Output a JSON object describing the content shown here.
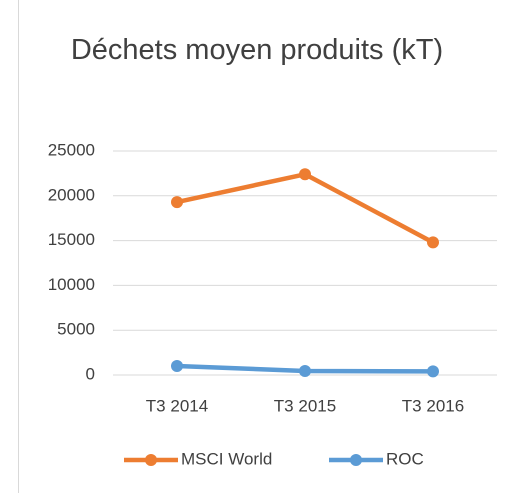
{
  "chart_data": {
    "type": "line",
    "title": "Déchets moyen produits (kT)",
    "categories": [
      "T3 2014",
      "T3 2015",
      "T3 2016"
    ],
    "series": [
      {
        "name": "MSCI World",
        "color": "#ed7d31",
        "values": [
          19300,
          22400,
          14800
        ]
      },
      {
        "name": "ROC",
        "color": "#5b9bd5",
        "values": [
          1000,
          450,
          400
        ]
      }
    ],
    "ylim": [
      0,
      25000
    ],
    "yticks": [
      0,
      5000,
      10000,
      15000,
      20000,
      25000
    ],
    "grid": true,
    "legend": "bottom"
  }
}
